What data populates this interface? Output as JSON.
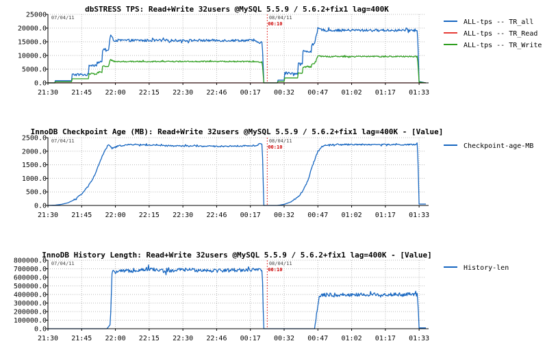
{
  "chart_data": [
    {
      "type": "line",
      "title": "dbSTRESS TPS: Read+Write 32users @MySQL 5.5.9 / 5.6.2+fix1 lag=400K",
      "ylim": [
        0,
        25000
      ],
      "yticks": [
        "0.0",
        "5000.0",
        "10000.0",
        "15000.0",
        "20000.0",
        "25000"
      ],
      "xticks": [
        "21:30",
        "21:45",
        "22:00",
        "22:15",
        "22:30",
        "22:46",
        "00:17",
        "00:32",
        "00:47",
        "01:02",
        "01:17",
        "01:33"
      ],
      "dates": [
        "07/04/11",
        "08/04/11"
      ],
      "marker_label": "00:10",
      "grid": true,
      "legend": "right",
      "series": [
        {
          "name": "ALL-tps -- TR_all",
          "color": "#1565c0",
          "noise": 450,
          "points": [
            [
              0,
              0
            ],
            [
              0.2,
              0
            ],
            [
              0.2,
              800
            ],
            [
              0.7,
              800
            ],
            [
              0.7,
              3000
            ],
            [
              1.2,
              3000
            ],
            [
              1.2,
              6500
            ],
            [
              1.45,
              6500
            ],
            [
              1.45,
              7500
            ],
            [
              1.6,
              7500
            ],
            [
              1.6,
              12000
            ],
            [
              1.8,
              12000
            ],
            [
              1.85,
              17500
            ],
            [
              1.95,
              15500
            ],
            [
              6.15,
              15500
            ],
            [
              6.15,
              14800
            ],
            [
              6.35,
              14800
            ],
            [
              6.4,
              0
            ],
            [
              6.8,
              0
            ],
            [
              6.8,
              1000
            ],
            [
              7.0,
              1000
            ],
            [
              7.0,
              3500
            ],
            [
              7.4,
              3500
            ],
            [
              7.4,
              7000
            ],
            [
              7.55,
              7000
            ],
            [
              7.55,
              11500
            ],
            [
              7.8,
              11500
            ],
            [
              7.8,
              14000
            ],
            [
              7.9,
              14000
            ],
            [
              8.0,
              19800
            ],
            [
              8.2,
              19200
            ],
            [
              10.85,
              19200
            ],
            [
              10.95,
              19300
            ],
            [
              11.0,
              500
            ],
            [
              11.2,
              0
            ]
          ]
        },
        {
          "name": "ALL-tps -- TR_Read",
          "color": "#e53935",
          "noise": 0,
          "points": [
            [
              0,
              0
            ],
            [
              11.2,
              0
            ]
          ]
        },
        {
          "name": "ALL-tps -- TR_Write",
          "color": "#2e9e1f",
          "noise": 220,
          "points": [
            [
              0,
              0
            ],
            [
              0.2,
              0
            ],
            [
              0.2,
              400
            ],
            [
              0.7,
              400
            ],
            [
              0.7,
              1500
            ],
            [
              1.2,
              1500
            ],
            [
              1.2,
              3300
            ],
            [
              1.45,
              3300
            ],
            [
              1.45,
              3800
            ],
            [
              1.6,
              3800
            ],
            [
              1.6,
              6000
            ],
            [
              1.8,
              6000
            ],
            [
              1.85,
              8800
            ],
            [
              1.95,
              7800
            ],
            [
              6.15,
              7800
            ],
            [
              6.15,
              7600
            ],
            [
              6.35,
              7600
            ],
            [
              6.4,
              0
            ],
            [
              6.8,
              0
            ],
            [
              6.8,
              500
            ],
            [
              7.0,
              500
            ],
            [
              7.0,
              1800
            ],
            [
              7.4,
              1800
            ],
            [
              7.4,
              3600
            ],
            [
              7.55,
              3600
            ],
            [
              7.55,
              5800
            ],
            [
              7.8,
              5800
            ],
            [
              7.8,
              7000
            ],
            [
              7.9,
              7000
            ],
            [
              8.0,
              9800
            ],
            [
              8.2,
              9600
            ],
            [
              10.95,
              9600
            ],
            [
              11.0,
              300
            ],
            [
              11.2,
              0
            ]
          ]
        }
      ]
    },
    {
      "type": "line",
      "title": "InnoDB Checkpoint Age (MB): Read+Write 32users @MySQL 5.5.9 / 5.6.2+fix1 lag=400K - [Value]",
      "ylim": [
        0,
        2500
      ],
      "yticks": [
        "0.0",
        "500.0",
        "1000.0",
        "1500.0",
        "2000.0",
        "2500.0"
      ],
      "xticks": [
        "21:30",
        "21:45",
        "22:00",
        "22:15",
        "22:30",
        "22:46",
        "00:17",
        "00:32",
        "00:47",
        "01:02",
        "01:17",
        "01:33"
      ],
      "dates": [
        "07/04/11",
        "08/04/11"
      ],
      "marker_label": "00:10",
      "grid": true,
      "legend": "right",
      "series": [
        {
          "name": "Checkpoint-age-MB",
          "color": "#1565c0",
          "noise": 25,
          "points": [
            [
              0,
              0
            ],
            [
              0.2,
              10
            ],
            [
              0.4,
              40
            ],
            [
              0.6,
              100
            ],
            [
              0.8,
              220
            ],
            [
              1.0,
              420
            ],
            [
              1.2,
              720
            ],
            [
              1.4,
              1150
            ],
            [
              1.55,
              1650
            ],
            [
              1.7,
              2050
            ],
            [
              1.8,
              2250
            ],
            [
              1.9,
              2100
            ],
            [
              2.1,
              2200
            ],
            [
              2.5,
              2250
            ],
            [
              3.5,
              2200
            ],
            [
              5.0,
              2180
            ],
            [
              6.0,
              2200
            ],
            [
              6.2,
              2200
            ],
            [
              6.25,
              2300
            ],
            [
              6.35,
              2250
            ],
            [
              6.4,
              0
            ],
            [
              6.8,
              0
            ],
            [
              7.0,
              40
            ],
            [
              7.2,
              130
            ],
            [
              7.4,
              300
            ],
            [
              7.55,
              520
            ],
            [
              7.7,
              900
            ],
            [
              7.85,
              1500
            ],
            [
              8.0,
              2000
            ],
            [
              8.1,
              2150
            ],
            [
              8.2,
              2220
            ],
            [
              8.5,
              2250
            ],
            [
              10.9,
              2240
            ],
            [
              10.95,
              2300
            ],
            [
              11.0,
              50
            ],
            [
              11.2,
              50
            ]
          ]
        }
      ]
    },
    {
      "type": "line",
      "title": "InnoDB History Length: Read+Write 32users @MySQL 5.5.9 / 5.6.2+fix1 lag=400K - [Value]",
      "ylim": [
        0,
        800000
      ],
      "yticks": [
        "0.0",
        "100000.0",
        "200000.0",
        "300000.0",
        "400000.0",
        "500000.0",
        "600000.0",
        "700000.0",
        "800000.0"
      ],
      "xticks": [
        "21:30",
        "21:45",
        "22:00",
        "22:15",
        "22:30",
        "22:46",
        "00:17",
        "00:32",
        "00:47",
        "01:02",
        "01:17",
        "01:33"
      ],
      "dates": [
        "07/04/11",
        "08/04/11"
      ],
      "marker_label": "00:10",
      "grid": true,
      "legend": "right",
      "series": [
        {
          "name": "History-len",
          "color": "#1565c0",
          "noise": 22000,
          "points": [
            [
              0,
              0
            ],
            [
              1.75,
              0
            ],
            [
              1.85,
              50000
            ],
            [
              1.9,
              660000
            ],
            [
              2.5,
              680000
            ],
            [
              3.0,
              700000
            ],
            [
              3.5,
              670000
            ],
            [
              4.0,
              690000
            ],
            [
              5.0,
              680000
            ],
            [
              6.0,
              690000
            ],
            [
              6.35,
              680000
            ],
            [
              6.4,
              0
            ],
            [
              7.55,
              0
            ],
            [
              7.9,
              0
            ],
            [
              8.05,
              390000
            ],
            [
              8.2,
              395000
            ],
            [
              10.95,
              400000
            ],
            [
              11.0,
              10000
            ],
            [
              11.2,
              10000
            ]
          ]
        }
      ]
    }
  ]
}
